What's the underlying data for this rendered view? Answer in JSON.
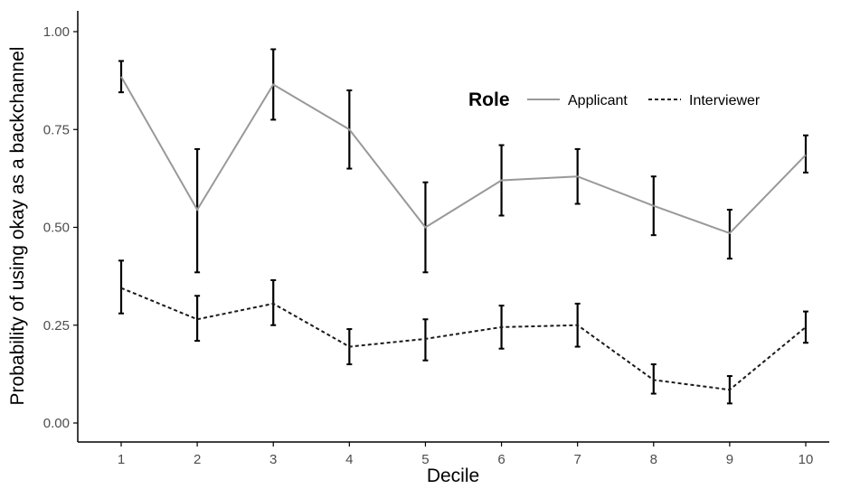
{
  "chart_data": {
    "type": "line",
    "xlabel": "Decile",
    "ylabel": "Probability of using okay as a backchannel",
    "categories": [
      "1",
      "2",
      "3",
      "4",
      "5",
      "6",
      "7",
      "8",
      "9",
      "10"
    ],
    "x": [
      1,
      2,
      3,
      4,
      5,
      6,
      7,
      8,
      9,
      10
    ],
    "ylim": [
      0,
      1.0
    ],
    "xlim": [
      0.4,
      10.6
    ],
    "yticks": [
      0,
      0.25,
      0.5,
      0.75,
      1.0
    ],
    "ytick_labels": [
      "0.00",
      "0.25",
      "0.50",
      "0.75",
      "1.00"
    ],
    "grid": false,
    "legend": {
      "title": "Role",
      "placement": "top-right"
    },
    "series": [
      {
        "name": "Applicant",
        "color": "#999999",
        "dash": "solid",
        "values": [
          0.885,
          0.545,
          0.865,
          0.75,
          0.5,
          0.62,
          0.63,
          0.555,
          0.485,
          0.685
        ],
        "lower": [
          0.845,
          0.385,
          0.775,
          0.65,
          0.385,
          0.53,
          0.56,
          0.48,
          0.42,
          0.64
        ],
        "upper": [
          0.925,
          0.7,
          0.955,
          0.85,
          0.615,
          0.71,
          0.7,
          0.63,
          0.545,
          0.735
        ]
      },
      {
        "name": "Interviewer",
        "color": "#1a1a1a",
        "dash": "dashed",
        "values": [
          0.345,
          0.265,
          0.305,
          0.195,
          0.215,
          0.245,
          0.25,
          0.11,
          0.085,
          0.245
        ],
        "lower": [
          0.28,
          0.21,
          0.25,
          0.15,
          0.16,
          0.19,
          0.195,
          0.075,
          0.05,
          0.205
        ],
        "upper": [
          0.415,
          0.325,
          0.365,
          0.24,
          0.265,
          0.3,
          0.305,
          0.15,
          0.12,
          0.285
        ]
      }
    ],
    "errorbar_color": "#000000"
  }
}
